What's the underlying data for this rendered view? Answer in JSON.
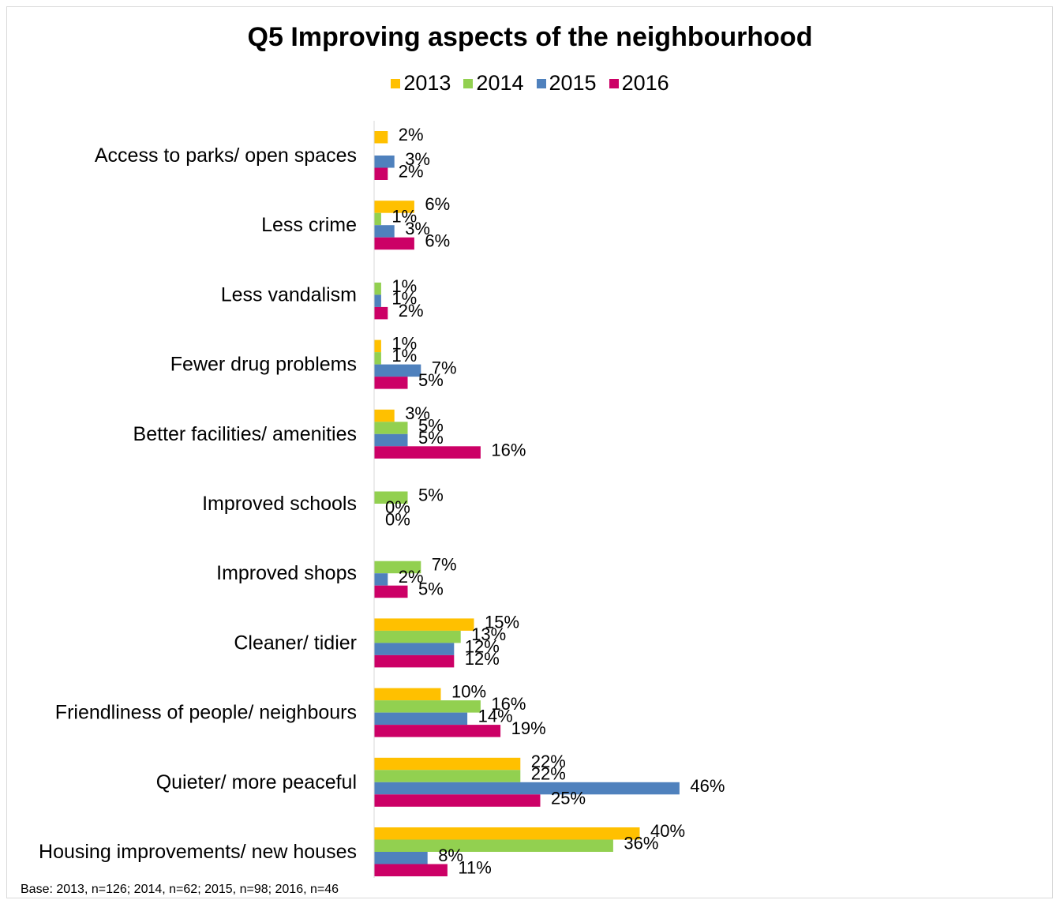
{
  "chart_data": {
    "type": "bar",
    "orientation": "horizontal",
    "title": "Q5 Improving aspects of the neighbourhood",
    "categories": [
      "Access to parks/ open spaces",
      "Less crime",
      "Less vandalism",
      "Fewer drug problems",
      "Better facilities/ amenities",
      "Improved schools",
      "Improved shops",
      "Cleaner/ tidier",
      "Friendliness of people/ neighbours",
      "Quieter/ more peaceful",
      "Housing improvements/ new houses"
    ],
    "series": [
      {
        "name": "2013",
        "color": "#FFC000",
        "values": [
          2,
          6,
          null,
          1,
          3,
          null,
          null,
          15,
          10,
          22,
          40
        ]
      },
      {
        "name": "2014",
        "color": "#92D050",
        "values": [
          null,
          1,
          1,
          1,
          5,
          5,
          7,
          13,
          16,
          22,
          36
        ]
      },
      {
        "name": "2015",
        "color": "#4F81BD",
        "values": [
          3,
          3,
          1,
          7,
          5,
          0,
          2,
          12,
          14,
          46,
          8
        ]
      },
      {
        "name": "2016",
        "color": "#CC0066",
        "values": [
          2,
          6,
          2,
          5,
          16,
          0,
          5,
          12,
          19,
          25,
          11
        ]
      }
    ],
    "value_suffix": "%",
    "legend_position": "top",
    "grid": false,
    "xaxis_visible": false
  },
  "footnote": "Base: 2013, n=126; 2014, n=62; 2015, n=98; 2016, n=46"
}
